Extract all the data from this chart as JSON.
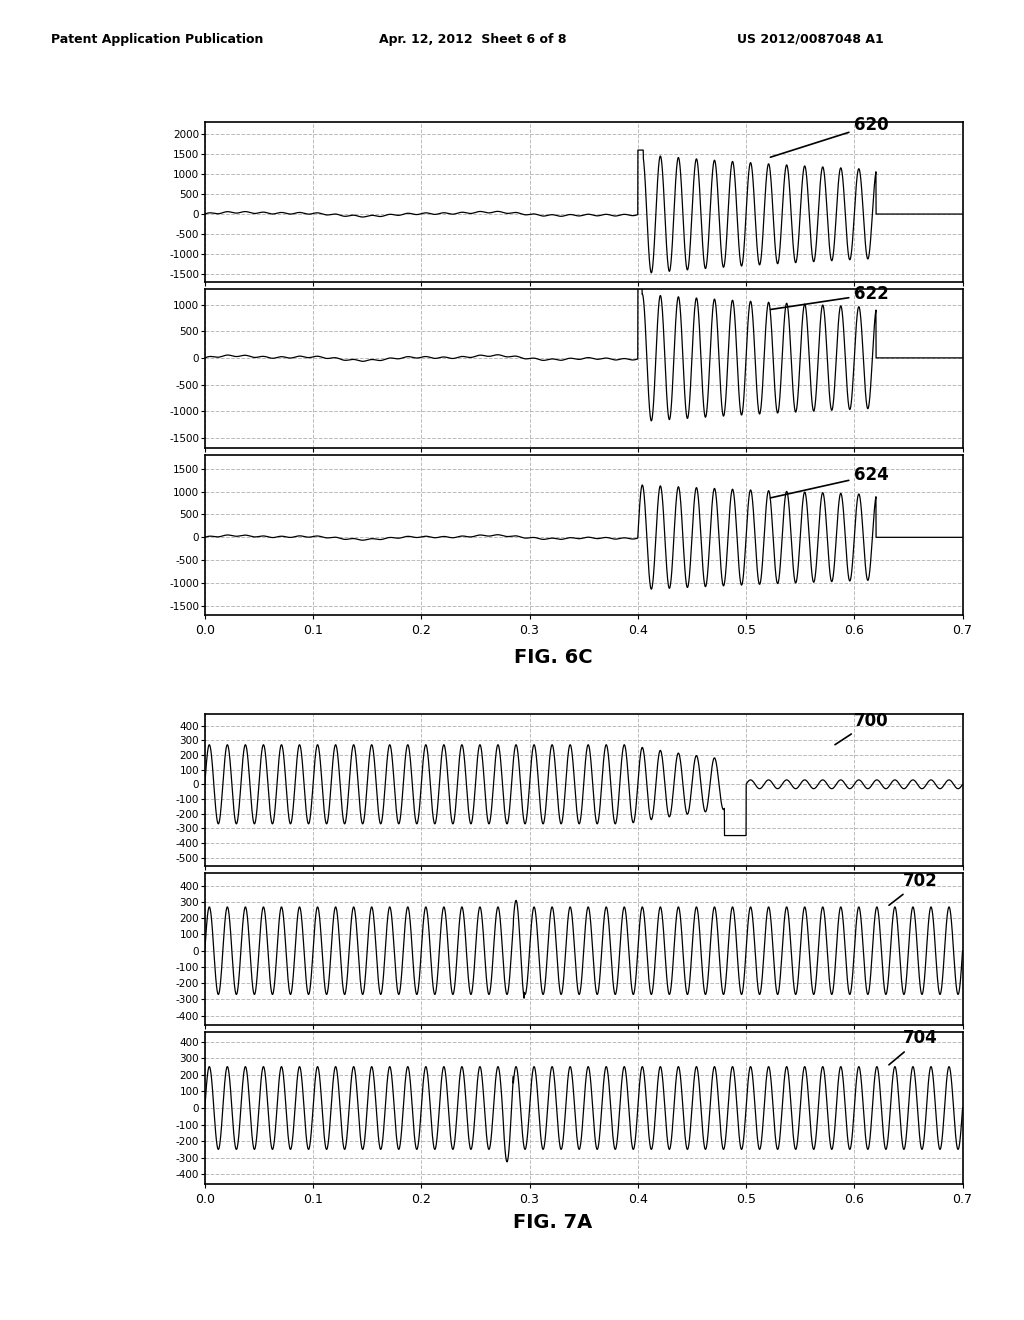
{
  "header_left": "Patent Application Publication",
  "header_mid": "Apr. 12, 2012  Sheet 6 of 8",
  "header_right": "US 2012/0087048 A1",
  "fig6c_label": "FIG. 6C",
  "fig7a_label": "FIG. 7A",
  "xlim": [
    0,
    0.7
  ],
  "xticks": [
    0,
    0.1,
    0.2,
    0.3,
    0.4,
    0.5,
    0.6,
    0.7
  ],
  "plot620_outer_yticks": [
    1500,
    500,
    0,
    -500,
    -1500
  ],
  "plot620_inner_yticks": [
    2000,
    1000,
    0,
    -1000
  ],
  "plot620_ylim": [
    -1700,
    2300
  ],
  "plot620_label": "620",
  "plot622_outer_yticks": [
    1000,
    500,
    0,
    -500,
    -1000,
    -1500
  ],
  "plot622_inner_yticks": [
    1000,
    0,
    -1000
  ],
  "plot622_ylim": [
    -1700,
    1300
  ],
  "plot622_label": "622",
  "plot624_outer_yticks": [
    1500,
    500,
    0,
    -500,
    -1500
  ],
  "plot624_inner_yticks": [
    1000,
    0,
    -1000
  ],
  "plot624_ylim": [
    -1700,
    1800
  ],
  "plot624_label": "624",
  "plot700_outer_yticks": [
    300,
    100,
    -100,
    -300,
    -500
  ],
  "plot700_inner_yticks": [
    400,
    200,
    0,
    -200,
    -400
  ],
  "plot700_ylim": [
    -560,
    480
  ],
  "plot700_label": "700",
  "plot702_outer_yticks": [
    300,
    100,
    -100,
    -300
  ],
  "plot702_inner_yticks": [
    400,
    200,
    0,
    -200,
    -400
  ],
  "plot702_ylim": [
    -460,
    480
  ],
  "plot702_label": "702",
  "plot704_outer_yticks": [
    300,
    100,
    -100,
    -300
  ],
  "plot704_inner_yticks": [
    400,
    200,
    0,
    -200,
    -400
  ],
  "plot704_ylim": [
    -460,
    460
  ],
  "plot704_label": "704",
  "background_color": "#ffffff",
  "line_color": "#000000",
  "grid_color": "#aaaaaa"
}
